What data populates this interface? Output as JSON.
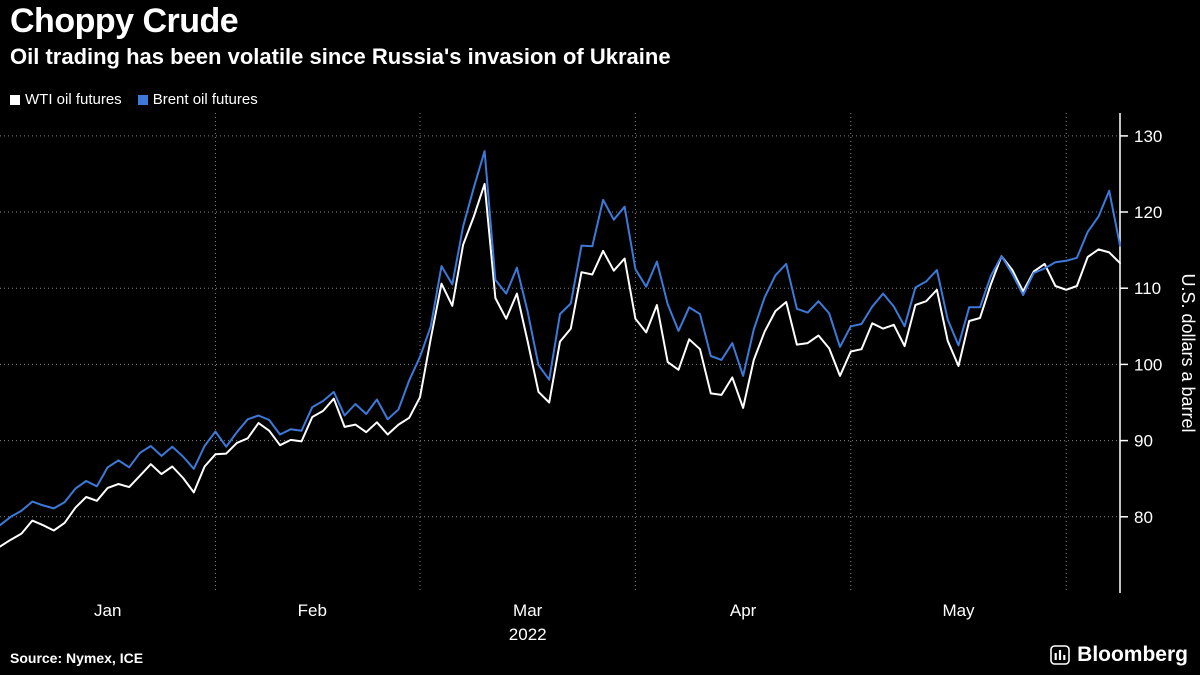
{
  "header": {
    "title": "Choppy Crude",
    "subtitle": "Oil trading has been volatile since Russia's invasion of Ukraine"
  },
  "legend": [
    {
      "label": "WTI oil futures",
      "color": "#ffffff"
    },
    {
      "label": "Brent oil futures",
      "color": "#3D79D8"
    }
  ],
  "footer": {
    "source": "Source: Nymex, ICE",
    "brand": "Bloomberg"
  },
  "colors": {
    "background": "#000000",
    "grid": "#828282",
    "axis": "#ffffff",
    "wti": "#ffffff",
    "brent": "#3D79D8"
  },
  "chart_data": {
    "type": "line",
    "title": "Choppy Crude",
    "subtitle": "Oil trading has been volatile since Russia's invasion of Ukraine",
    "xlabel": "",
    "ylabel": "U.S. dollars a barrel",
    "ylim": [
      70,
      133
    ],
    "yticks": [
      80,
      90,
      100,
      110,
      120,
      130
    ],
    "grid": "dotted",
    "legend_position": "top-left",
    "x_unit": "daily closes, Jan–May 2022",
    "month_labels": [
      "Jan",
      "Feb",
      "Mar",
      "Apr",
      "May"
    ],
    "month_label_indices": [
      10,
      29,
      49,
      69,
      89
    ],
    "vgrid_indices": [
      20,
      39,
      59,
      79,
      99
    ],
    "year_label": "2022",
    "year_label_under": "Mar",
    "series": [
      {
        "name": "WTI oil futures",
        "color": "#ffffff",
        "values": [
          76.1,
          77.0,
          77.8,
          79.5,
          78.9,
          78.2,
          79.2,
          81.2,
          82.6,
          82.1,
          83.8,
          84.3,
          83.9,
          85.4,
          86.9,
          85.6,
          86.6,
          85.1,
          83.2,
          86.6,
          88.2,
          88.3,
          89.7,
          90.3,
          92.3,
          91.3,
          89.4,
          90.1,
          89.9,
          93.1,
          93.9,
          95.5,
          91.8,
          92.1,
          91.1,
          92.4,
          90.8,
          92.1,
          93.0,
          95.7,
          103.4,
          110.6,
          107.7,
          115.7,
          119.4,
          123.7,
          108.7,
          106.0,
          109.3,
          103.0,
          96.4,
          95.0,
          103.0,
          104.7,
          112.1,
          111.8,
          114.9,
          112.3,
          113.9,
          106.0,
          104.2,
          107.8,
          100.3,
          99.3,
          103.3,
          102.0,
          96.2,
          96.0,
          98.3,
          94.3,
          100.6,
          104.3,
          107.0,
          108.2,
          102.6,
          102.8,
          103.8,
          102.1,
          98.5,
          101.7,
          102.0,
          105.4,
          104.7,
          105.2,
          102.4,
          107.8,
          108.3,
          109.8,
          103.1,
          99.8,
          105.7,
          106.1,
          110.5,
          114.2,
          112.4,
          109.6,
          112.2,
          113.2,
          110.3,
          109.8,
          110.3,
          114.1,
          115.1,
          114.7,
          113.3
        ]
      },
      {
        "name": "Brent oil futures",
        "color": "#3D79D8",
        "values": [
          78.9,
          80.0,
          80.8,
          82.0,
          81.5,
          81.1,
          81.9,
          83.7,
          84.7,
          84.0,
          86.5,
          87.4,
          86.5,
          88.4,
          89.3,
          88.0,
          89.2,
          87.9,
          86.3,
          89.3,
          91.2,
          89.2,
          91.1,
          92.8,
          93.3,
          92.7,
          90.8,
          91.5,
          91.3,
          94.4,
          95.2,
          96.4,
          93.3,
          94.8,
          93.5,
          95.4,
          92.8,
          94.1,
          97.9,
          101.0,
          105.0,
          112.9,
          110.5,
          118.1,
          123.2,
          128.0,
          111.1,
          109.3,
          112.7,
          106.9,
          99.9,
          98.0,
          106.6,
          108.0,
          115.6,
          115.5,
          121.6,
          119.0,
          120.7,
          112.5,
          110.2,
          113.5,
          107.9,
          104.4,
          107.5,
          106.6,
          101.1,
          100.6,
          102.8,
          98.5,
          104.6,
          108.8,
          111.7,
          113.2,
          107.3,
          106.8,
          108.3,
          106.7,
          102.3,
          105.0,
          105.3,
          107.6,
          109.3,
          107.6,
          105.0,
          110.1,
          110.9,
          112.4,
          105.9,
          102.5,
          107.5,
          107.5,
          111.6,
          114.2,
          111.9,
          109.1,
          112.0,
          112.6,
          113.4,
          113.6,
          114.0,
          117.4,
          119.4,
          122.8,
          115.6
        ]
      }
    ]
  }
}
